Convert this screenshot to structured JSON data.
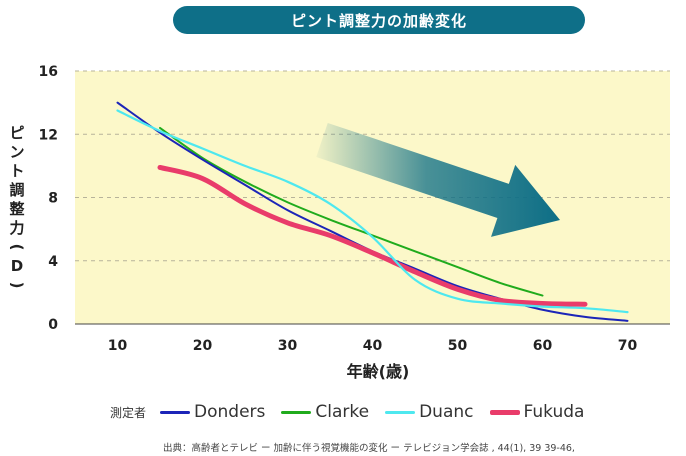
{
  "title": "ピント調整力の加齢変化",
  "source": "出典：高齢者とテレビ ー 加齢に伴う視覚機能の変化 ー テレビジョン学会誌 , 44(1), 39 39-46,",
  "legend_title": "測定者",
  "colors": {
    "title_bg": "#0e6f88",
    "plot_bg": "#fcf8c9",
    "arrow": "#0d6e86"
  },
  "chart_data": {
    "type": "line",
    "title": "ピント調整力の加齢変化",
    "xlabel": "年齢(歳)",
    "ylabel": "ピント調整力(D)",
    "xlim": [
      5,
      75
    ],
    "ylim": [
      0,
      16
    ],
    "x_ticks": [
      10,
      20,
      30,
      40,
      50,
      60,
      70
    ],
    "y_ticks": [
      0,
      4,
      8,
      12,
      16
    ],
    "grid": "horizontal dashed",
    "legend": "bottom",
    "annotation": "arrow pointing down-right (decline with age)",
    "series": [
      {
        "name": "Donders",
        "color": "#1c25b8",
        "x": [
          10,
          15,
          20,
          25,
          30,
          35,
          40,
          45,
          50,
          55,
          60,
          65,
          70
        ],
        "y": [
          14.0,
          12.1,
          10.4,
          8.8,
          7.2,
          5.9,
          4.6,
          3.5,
          2.4,
          1.6,
          0.9,
          0.45,
          0.2
        ]
      },
      {
        "name": "Clarke",
        "color": "#20ab1d",
        "x": [
          15,
          20,
          25,
          30,
          35,
          40,
          45,
          50,
          55,
          60
        ],
        "y": [
          12.4,
          10.5,
          9.0,
          7.7,
          6.6,
          5.6,
          4.6,
          3.6,
          2.6,
          1.8
        ]
      },
      {
        "name": "Duanc",
        "color": "#4ee8ef",
        "x": [
          10,
          15,
          20,
          25,
          30,
          35,
          40,
          45,
          50,
          55,
          60,
          65,
          70
        ],
        "y": [
          13.5,
          12.2,
          11.1,
          10.0,
          9.0,
          7.6,
          5.5,
          2.8,
          1.6,
          1.3,
          1.1,
          1.0,
          0.75
        ]
      },
      {
        "name": "Fukuda",
        "color": "#e93c6a",
        "x": [
          15,
          20,
          25,
          30,
          35,
          40,
          45,
          50,
          55,
          60,
          65
        ],
        "y": [
          9.9,
          9.2,
          7.6,
          6.4,
          5.6,
          4.5,
          3.3,
          2.2,
          1.5,
          1.3,
          1.25
        ]
      }
    ]
  }
}
